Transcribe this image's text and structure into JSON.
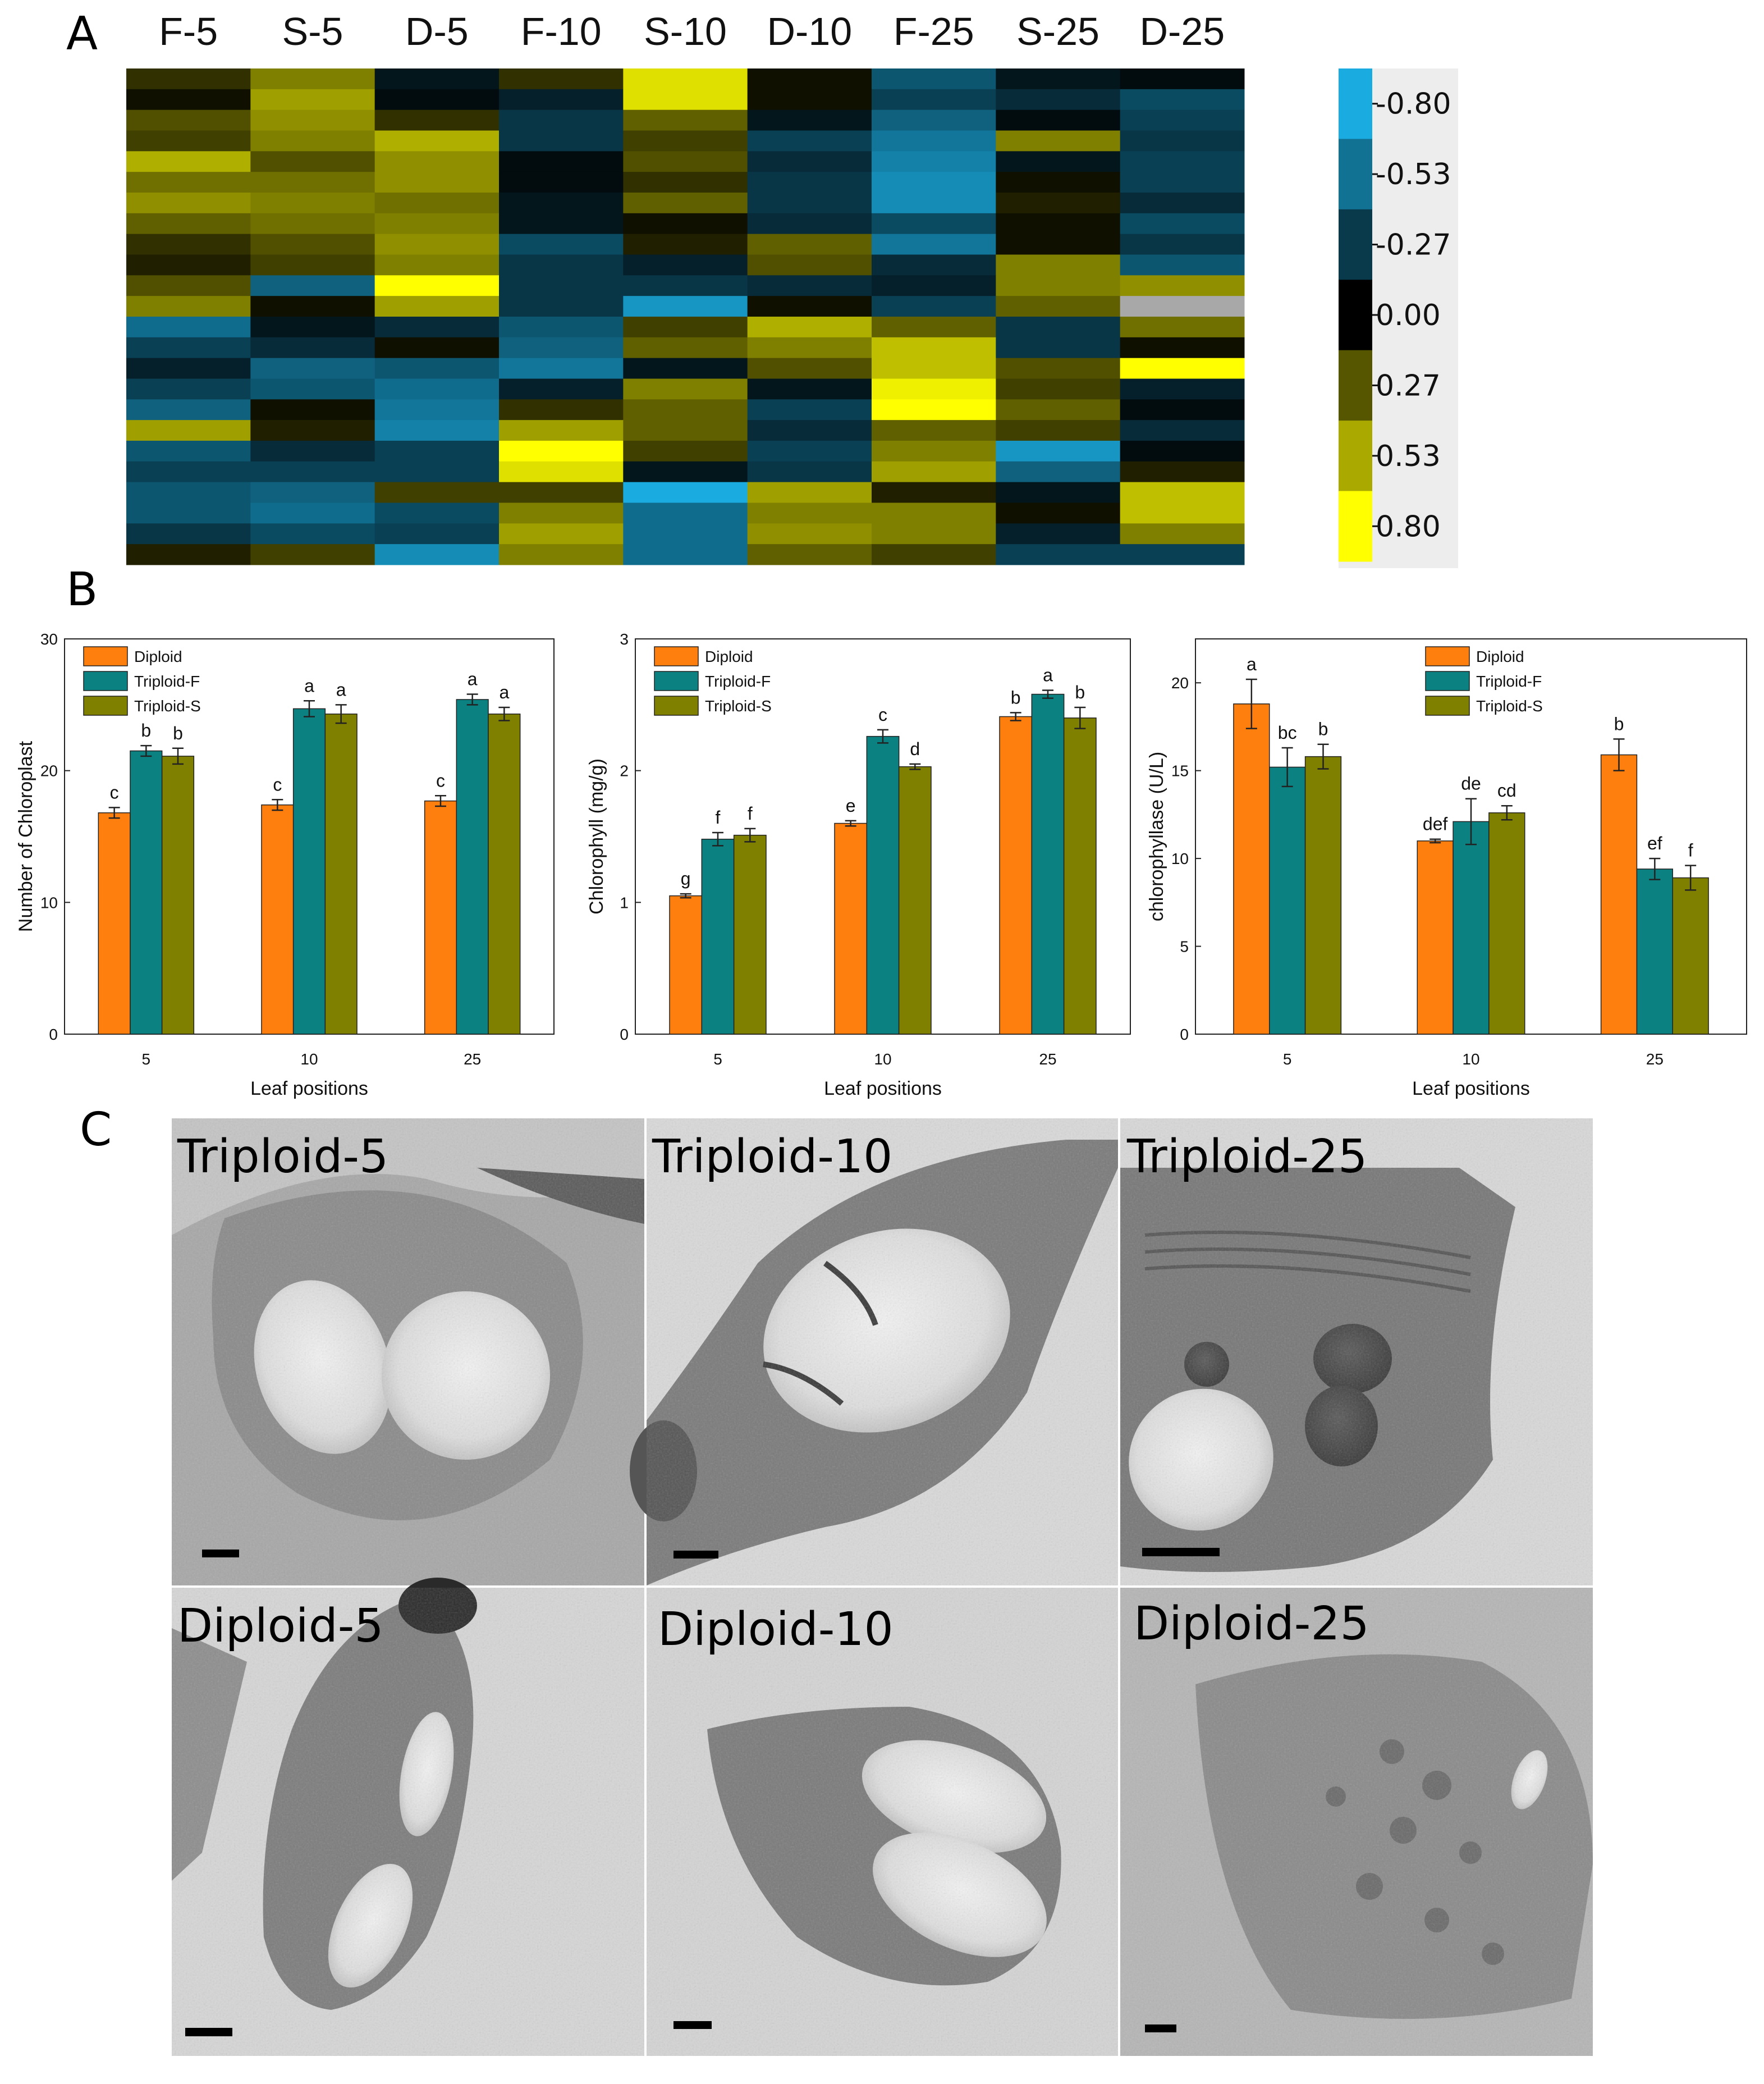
{
  "panels": {
    "a": "A",
    "b": "B",
    "c": "C"
  },
  "colors": {
    "diploid": "#ff7f0e",
    "triploid_f": "#0b8181",
    "triploid_s": "#7f7f00",
    "heat_neg": "#1aace0",
    "heat_zero": "#000000",
    "heat_pos": "#ffff00",
    "missing": "#a8a8a8"
  },
  "heatmap": {
    "columns": [
      "F-5",
      "S-5",
      "D-5",
      "F-10",
      "S-10",
      "D-10",
      "F-25",
      "S-25",
      "D-25"
    ],
    "colorbar_labels": [
      "-0.80",
      "-0.53",
      "-0.27",
      "0.00",
      "0.27",
      "0.53",
      "0.80"
    ],
    "range": [
      -0.8,
      0.8
    ],
    "values": [
      [
        0.15,
        0.4,
        -0.1,
        0.15,
        0.7,
        0.05,
        -0.4,
        -0.1,
        -0.05
      ],
      [
        0.05,
        0.5,
        -0.05,
        -0.15,
        0.7,
        0.05,
        -0.3,
        -0.2,
        -0.35
      ],
      [
        0.25,
        0.45,
        0.15,
        -0.25,
        0.3,
        -0.1,
        -0.45,
        -0.05,
        -0.3
      ],
      [
        0.2,
        0.4,
        0.55,
        -0.25,
        0.2,
        -0.3,
        -0.55,
        0.4,
        -0.25
      ],
      [
        0.55,
        0.25,
        0.45,
        -0.05,
        0.25,
        -0.2,
        -0.6,
        -0.1,
        -0.3
      ],
      [
        0.35,
        0.35,
        0.45,
        -0.05,
        0.15,
        -0.25,
        -0.65,
        0.05,
        -0.3
      ],
      [
        0.45,
        0.4,
        0.35,
        -0.1,
        0.3,
        -0.25,
        -0.65,
        0.1,
        -0.2
      ],
      [
        0.3,
        0.35,
        0.4,
        -0.1,
        0.05,
        -0.2,
        -0.35,
        0.05,
        -0.35
      ],
      [
        0.15,
        0.25,
        0.45,
        -0.35,
        0.1,
        0.3,
        -0.55,
        0.05,
        -0.25
      ],
      [
        0.1,
        0.2,
        0.4,
        -0.25,
        -0.15,
        0.25,
        -0.2,
        0.4,
        -0.4
      ],
      [
        0.25,
        -0.45,
        0.8,
        -0.25,
        -0.25,
        -0.2,
        -0.15,
        0.4,
        0.45
      ],
      [
        0.4,
        0.05,
        0.5,
        -0.25,
        -0.7,
        0.05,
        -0.3,
        0.3,
        null
      ],
      [
        -0.5,
        -0.1,
        -0.2,
        -0.4,
        0.2,
        0.55,
        0.3,
        -0.25,
        0.35
      ],
      [
        -0.3,
        -0.2,
        0.05,
        -0.45,
        0.3,
        0.4,
        0.6,
        -0.25,
        0.05
      ],
      [
        -0.15,
        -0.45,
        -0.4,
        -0.55,
        -0.1,
        0.25,
        0.6,
        0.25,
        0.8
      ],
      [
        -0.3,
        -0.4,
        -0.5,
        -0.15,
        0.4,
        -0.1,
        0.75,
        0.2,
        -0.15
      ],
      [
        -0.45,
        0.05,
        -0.55,
        0.15,
        0.3,
        -0.3,
        0.8,
        0.3,
        -0.05
      ],
      [
        0.5,
        0.1,
        -0.6,
        0.5,
        0.3,
        -0.2,
        0.3,
        0.2,
        -0.2
      ],
      [
        -0.4,
        -0.2,
        -0.3,
        0.8,
        0.2,
        -0.3,
        0.4,
        -0.7,
        -0.05
      ],
      [
        -0.3,
        -0.3,
        -0.3,
        0.7,
        -0.1,
        -0.25,
        0.5,
        -0.45,
        0.1
      ],
      [
        -0.4,
        -0.45,
        0.2,
        0.2,
        -0.8,
        0.5,
        0.1,
        -0.1,
        0.6
      ],
      [
        -0.4,
        -0.5,
        -0.35,
        0.4,
        -0.5,
        0.4,
        0.4,
        0.05,
        0.6
      ],
      [
        -0.25,
        -0.35,
        -0.3,
        0.5,
        -0.5,
        0.45,
        0.4,
        -0.15,
        0.4
      ],
      [
        0.1,
        0.2,
        -0.65,
        0.4,
        -0.5,
        0.3,
        0.2,
        -0.3,
        -0.3
      ]
    ]
  },
  "bar_legend": [
    "Diploid",
    "Triploid-F",
    "Triploid-S"
  ],
  "chart_data": [
    {
      "type": "bar",
      "categories": [
        "5",
        "10",
        "25"
      ],
      "xlabel": "Leaf positions",
      "ylabel": "Number of Chloroplast",
      "ylim": [
        0,
        30
      ],
      "yticks": [
        "0",
        "10",
        "20",
        "30"
      ],
      "legend_position": "top-left",
      "series": [
        {
          "name": "Diploid",
          "values": [
            16.8,
            17.4,
            17.7
          ],
          "errors": [
            0.4,
            0.4,
            0.4
          ],
          "letters": [
            "c",
            "c",
            "c"
          ]
        },
        {
          "name": "Triploid-F",
          "values": [
            21.5,
            24.7,
            25.4
          ],
          "errors": [
            0.4,
            0.6,
            0.4
          ],
          "letters": [
            "b",
            "a",
            "a"
          ]
        },
        {
          "name": "Triploid-S",
          "values": [
            21.1,
            24.3,
            24.3
          ],
          "errors": [
            0.6,
            0.7,
            0.5
          ],
          "letters": [
            "b",
            "a",
            "a"
          ]
        }
      ]
    },
    {
      "type": "bar",
      "categories": [
        "5",
        "10",
        "25"
      ],
      "xlabel": "Leaf positions",
      "ylabel": "Chlorophyll (mg/g)",
      "ylim": [
        0,
        3
      ],
      "yticks": [
        "0",
        "1",
        "2",
        "3"
      ],
      "legend_position": "top-left",
      "series": [
        {
          "name": "Diploid",
          "values": [
            1.05,
            1.6,
            2.41
          ],
          "errors": [
            0.015,
            0.02,
            0.03
          ],
          "letters": [
            "g",
            "e",
            "b"
          ]
        },
        {
          "name": "Triploid-F",
          "values": [
            1.48,
            2.26,
            2.58
          ],
          "errors": [
            0.05,
            0.05,
            0.03
          ],
          "letters": [
            "f",
            "c",
            "a"
          ]
        },
        {
          "name": "Triploid-S",
          "values": [
            1.51,
            2.03,
            2.4
          ],
          "errors": [
            0.05,
            0.02,
            0.08
          ],
          "letters": [
            "f",
            "d",
            "b"
          ]
        }
      ]
    },
    {
      "type": "bar",
      "categories": [
        "5",
        "10",
        "25"
      ],
      "xlabel": "Leaf positions",
      "ylabel": "chlorophyllase (U/L)",
      "ylim": [
        0,
        22.5
      ],
      "yticks": [
        "0",
        "5",
        "10",
        "15",
        "20"
      ],
      "legend_position": "top-right",
      "series": [
        {
          "name": "Diploid",
          "values": [
            18.8,
            11.0,
            15.9
          ],
          "errors": [
            1.4,
            0.1,
            0.9
          ],
          "letters": [
            "a",
            "def",
            "b"
          ]
        },
        {
          "name": "Triploid-F",
          "values": [
            15.2,
            12.1,
            9.4
          ],
          "errors": [
            1.1,
            1.3,
            0.6
          ],
          "letters": [
            "bc",
            "de",
            "ef"
          ]
        },
        {
          "name": "Triploid-S",
          "values": [
            15.8,
            12.6,
            8.9
          ],
          "errors": [
            0.7,
            0.4,
            0.7
          ],
          "letters": [
            "b",
            "cd",
            "f"
          ]
        }
      ]
    }
  ],
  "micrographs": [
    {
      "label": "Triploid-5"
    },
    {
      "label": "Triploid-10"
    },
    {
      "label": "Triploid-25"
    },
    {
      "label": "Diploid-5"
    },
    {
      "label": "Diploid-10"
    },
    {
      "label": "Diploid-25"
    }
  ]
}
